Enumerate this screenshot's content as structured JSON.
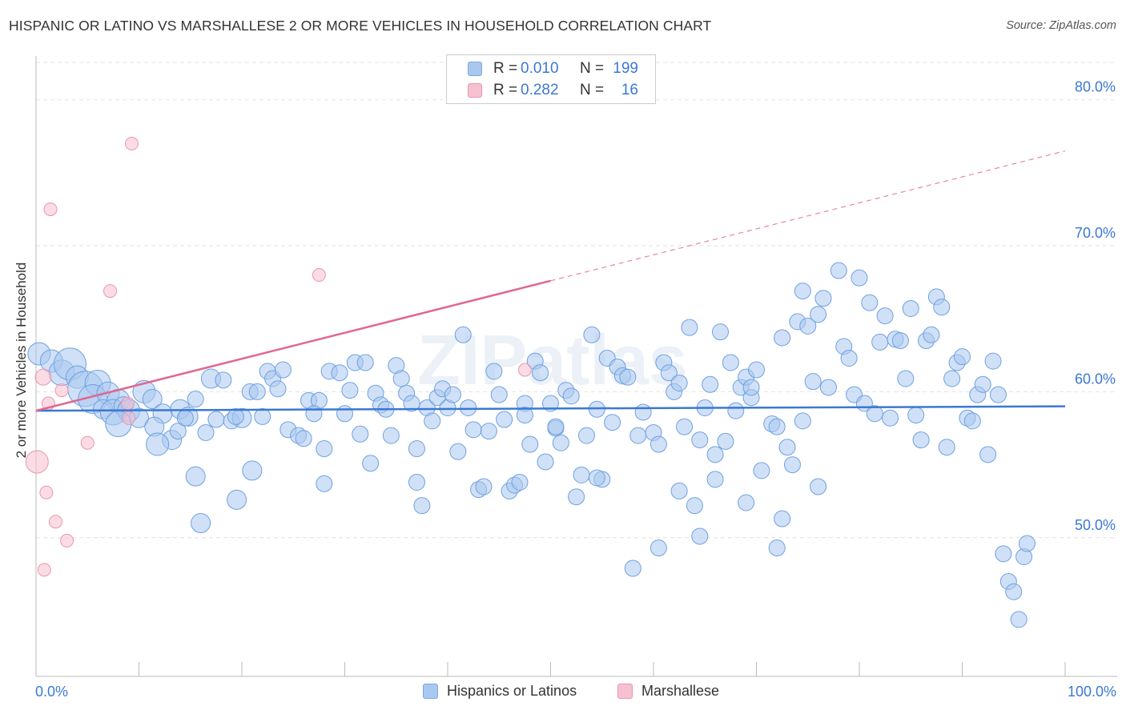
{
  "header": {
    "title": "HISPANIC OR LATINO VS MARSHALLESE 2 OR MORE VEHICLES IN HOUSEHOLD CORRELATION CHART",
    "source": "Source: ZipAtlas.com"
  },
  "legend_top": {
    "rows": [
      {
        "r_label": "R =",
        "r_value": "0.010",
        "n_label": "N =",
        "n_value": "199"
      },
      {
        "r_label": "R =",
        "r_value": "0.282",
        "n_label": "N =",
        "n_value": "16"
      }
    ]
  },
  "legend_bottom": {
    "items": [
      "Hispanics or Latinos",
      "Marshallese"
    ]
  },
  "colors": {
    "blue_fill": "#a9c8f0",
    "blue_stroke": "#6fa0e0",
    "blue_line": "#3a78d4",
    "pink_fill": "#f7c0d0",
    "pink_stroke": "#e896ae",
    "pink_line": "#e0678f",
    "tick_label": "#3b78d4"
  },
  "chart_data": {
    "type": "scatter",
    "title": "HISPANIC OR LATINO VS MARSHALLESE 2 OR MORE VEHICLES IN HOUSEHOLD CORRELATION CHART",
    "xlabel": "",
    "ylabel": "2 or more Vehicles in Household",
    "xlim": [
      0,
      100
    ],
    "ylim": [
      40.5,
      83
    ],
    "x_tick_labels": [
      "0.0%",
      "100.0%"
    ],
    "y_ticks": [
      50,
      60,
      70,
      80
    ],
    "y_tick_labels": [
      "50.0%",
      "60.0%",
      "70.0%",
      "80.0%"
    ],
    "grid": true,
    "legend_position": "top-center",
    "watermark": "ZIPatlas",
    "series": [
      {
        "name": "Hispanics or Latinos",
        "R": 0.01,
        "N": 199,
        "trend": {
          "x": [
            0,
            100
          ],
          "y": [
            58.7,
            59.0
          ]
        },
        "points": [
          [
            0.3,
            62.6,
            14
          ],
          [
            1.5,
            62.1,
            14
          ],
          [
            2.5,
            61.3,
            16
          ],
          [
            3.3,
            61.9,
            20
          ],
          [
            4.0,
            61.0,
            14
          ],
          [
            4.8,
            60.2,
            22
          ],
          [
            6.0,
            60.6,
            16
          ],
          [
            5.5,
            59.5,
            18
          ],
          [
            7.0,
            59.9,
            14
          ],
          [
            8.0,
            59.4,
            14
          ],
          [
            6.5,
            58.8,
            12
          ],
          [
            7.5,
            58.6,
            16
          ],
          [
            8.5,
            59.0,
            12
          ],
          [
            9.0,
            58.7,
            14
          ],
          [
            10.0,
            58.2,
            12
          ],
          [
            8.0,
            57.8,
            16
          ],
          [
            10.5,
            60.0,
            14
          ],
          [
            11.3,
            59.5,
            12
          ],
          [
            12.3,
            58.5,
            12
          ],
          [
            14.0,
            58.8,
            12
          ],
          [
            14.8,
            58.3,
            12
          ],
          [
            15.5,
            59.5,
            10
          ],
          [
            11.5,
            57.6,
            12
          ],
          [
            13.2,
            56.7,
            12
          ],
          [
            11.8,
            56.4,
            14
          ],
          [
            13.8,
            57.3,
            10
          ],
          [
            14.5,
            58.2,
            10
          ],
          [
            16.5,
            57.2,
            10
          ],
          [
            17.5,
            58.1,
            10
          ],
          [
            17.0,
            60.9,
            12
          ],
          [
            18.2,
            60.8,
            10
          ],
          [
            19.0,
            58.0,
            10
          ],
          [
            20.0,
            58.2,
            12
          ],
          [
            19.4,
            58.3,
            10
          ],
          [
            20.8,
            60.0,
            10
          ],
          [
            21.5,
            60.0,
            10
          ],
          [
            22.0,
            58.3,
            10
          ],
          [
            22.5,
            61.4,
            10
          ],
          [
            23.0,
            60.9,
            10
          ],
          [
            23.5,
            60.2,
            10
          ],
          [
            24.0,
            61.5,
            10
          ],
          [
            24.5,
            57.4,
            10
          ],
          [
            25.5,
            57.0,
            10
          ],
          [
            26.0,
            56.8,
            10
          ],
          [
            26.5,
            59.4,
            10
          ],
          [
            27.5,
            59.4,
            10
          ],
          [
            28.0,
            56.1,
            10
          ],
          [
            28.5,
            61.4,
            10
          ],
          [
            30.0,
            58.5,
            10
          ],
          [
            30.5,
            60.1,
            10
          ],
          [
            31.0,
            62.0,
            10
          ],
          [
            31.5,
            57.1,
            10
          ],
          [
            32.0,
            62.0,
            10
          ],
          [
            32.5,
            55.1,
            10
          ],
          [
            33.0,
            59.9,
            10
          ],
          [
            33.5,
            59.1,
            10
          ],
          [
            34.0,
            58.8,
            10
          ],
          [
            34.5,
            57.0,
            10
          ],
          [
            35.0,
            61.8,
            10
          ],
          [
            36.0,
            59.9,
            10
          ],
          [
            36.5,
            59.2,
            10
          ],
          [
            37.0,
            56.1,
            10
          ],
          [
            37.5,
            52.2,
            10
          ],
          [
            38.0,
            58.9,
            10
          ],
          [
            39.0,
            59.6,
            10
          ],
          [
            39.5,
            60.2,
            10
          ],
          [
            40.0,
            58.9,
            10
          ],
          [
            40.5,
            59.8,
            10
          ],
          [
            41.0,
            55.9,
            10
          ],
          [
            41.5,
            63.9,
            10
          ],
          [
            42.0,
            58.9,
            10
          ],
          [
            42.5,
            57.4,
            10
          ],
          [
            43.0,
            53.3,
            10
          ],
          [
            43.5,
            53.5,
            10
          ],
          [
            44.0,
            57.3,
            10
          ],
          [
            44.5,
            61.4,
            10
          ],
          [
            45.0,
            59.8,
            10
          ],
          [
            45.5,
            58.1,
            10
          ],
          [
            46.0,
            53.2,
            10
          ],
          [
            46.5,
            53.6,
            10
          ],
          [
            47.0,
            53.8,
            10
          ],
          [
            47.5,
            59.2,
            10
          ],
          [
            48.0,
            56.4,
            10
          ],
          [
            48.5,
            62.1,
            10
          ],
          [
            49.0,
            61.3,
            10
          ],
          [
            49.5,
            55.2,
            10
          ],
          [
            50.0,
            59.2,
            10
          ],
          [
            50.5,
            57.5,
            10
          ],
          [
            51.0,
            56.5,
            10
          ],
          [
            51.5,
            60.1,
            10
          ],
          [
            52.0,
            59.7,
            10
          ],
          [
            52.5,
            52.8,
            10
          ],
          [
            53.0,
            54.3,
            10
          ],
          [
            53.5,
            57.0,
            10
          ],
          [
            54.0,
            63.9,
            10
          ],
          [
            54.5,
            58.8,
            10
          ],
          [
            55.0,
            54.0,
            10
          ],
          [
            55.5,
            62.3,
            10
          ],
          [
            56.0,
            57.9,
            10
          ],
          [
            56.5,
            61.7,
            10
          ],
          [
            57.0,
            61.1,
            10
          ],
          [
            57.5,
            61.0,
            10
          ],
          [
            58.5,
            57.0,
            10
          ],
          [
            59.0,
            58.6,
            10
          ],
          [
            60.0,
            57.2,
            10
          ],
          [
            60.5,
            56.4,
            10
          ],
          [
            61.0,
            62.0,
            10
          ],
          [
            61.5,
            61.3,
            10
          ],
          [
            62.0,
            60.0,
            10
          ],
          [
            62.5,
            60.6,
            10
          ],
          [
            63.0,
            57.6,
            10
          ],
          [
            63.5,
            64.4,
            10
          ],
          [
            64.0,
            52.2,
            10
          ],
          [
            64.5,
            56.7,
            10
          ],
          [
            65.0,
            58.9,
            10
          ],
          [
            65.5,
            60.5,
            10
          ],
          [
            66.0,
            54.0,
            10
          ],
          [
            66.5,
            64.1,
            10
          ],
          [
            67.0,
            56.6,
            10
          ],
          [
            67.5,
            62.0,
            10
          ],
          [
            68.0,
            58.7,
            10
          ],
          [
            68.5,
            60.3,
            10
          ],
          [
            69.0,
            61.0,
            10
          ],
          [
            69.5,
            59.6,
            10
          ],
          [
            70.0,
            61.5,
            10
          ],
          [
            70.5,
            54.6,
            10
          ],
          [
            71.5,
            57.8,
            10
          ],
          [
            72.0,
            57.6,
            10
          ],
          [
            72.5,
            63.7,
            10
          ],
          [
            73.0,
            56.2,
            10
          ],
          [
            73.5,
            55.0,
            10
          ],
          [
            74.0,
            64.8,
            10
          ],
          [
            74.5,
            66.9,
            10
          ],
          [
            75.0,
            64.5,
            10
          ],
          [
            75.5,
            60.7,
            10
          ],
          [
            76.0,
            65.3,
            10
          ],
          [
            76.5,
            66.4,
            10
          ],
          [
            77.0,
            60.3,
            10
          ],
          [
            78.0,
            68.3,
            10
          ],
          [
            78.5,
            63.1,
            10
          ],
          [
            79.0,
            62.3,
            10
          ],
          [
            79.5,
            59.8,
            10
          ],
          [
            80.0,
            67.8,
            10
          ],
          [
            80.5,
            59.2,
            10
          ],
          [
            81.0,
            66.1,
            10
          ],
          [
            81.5,
            58.5,
            10
          ],
          [
            82.0,
            63.4,
            10
          ],
          [
            82.5,
            65.2,
            10
          ],
          [
            83.0,
            58.2,
            10
          ],
          [
            83.5,
            63.6,
            10
          ],
          [
            84.0,
            63.5,
            10
          ],
          [
            84.5,
            60.9,
            10
          ],
          [
            85.0,
            65.7,
            10
          ],
          [
            85.5,
            58.4,
            10
          ],
          [
            86.0,
            56.7,
            10
          ],
          [
            86.5,
            63.5,
            10
          ],
          [
            87.0,
            63.9,
            10
          ],
          [
            87.5,
            66.5,
            10
          ],
          [
            88.0,
            65.8,
            10
          ],
          [
            88.5,
            56.2,
            10
          ],
          [
            89.0,
            60.9,
            10
          ],
          [
            89.5,
            62.0,
            10
          ],
          [
            90.0,
            62.4,
            10
          ],
          [
            90.5,
            58.2,
            10
          ],
          [
            91.0,
            58.0,
            10
          ],
          [
            91.5,
            59.8,
            10
          ],
          [
            92.0,
            60.5,
            10
          ],
          [
            92.5,
            55.7,
            10
          ],
          [
            93.0,
            62.1,
            10
          ],
          [
            93.5,
            59.8,
            10
          ],
          [
            94.0,
            48.9,
            10
          ],
          [
            94.5,
            47.0,
            10
          ],
          [
            95.0,
            46.3,
            10
          ],
          [
            95.5,
            44.4,
            10
          ],
          [
            96.0,
            48.7,
            10
          ],
          [
            96.3,
            49.6,
            10
          ],
          [
            76.0,
            53.5,
            10
          ],
          [
            74.5,
            58.0,
            10
          ],
          [
            72.5,
            51.3,
            10
          ],
          [
            69.5,
            60.3,
            10
          ],
          [
            58.0,
            47.9,
            10
          ],
          [
            60.5,
            49.3,
            10
          ],
          [
            72.0,
            49.3,
            10
          ],
          [
            69.0,
            52.4,
            10
          ],
          [
            64.5,
            50.1,
            10
          ],
          [
            66.0,
            55.7,
            10
          ],
          [
            62.5,
            53.2,
            10
          ],
          [
            54.5,
            54.1,
            10
          ],
          [
            50.5,
            57.6,
            10
          ],
          [
            47.5,
            58.4,
            10
          ],
          [
            38.5,
            58.0,
            10
          ],
          [
            35.5,
            60.9,
            10
          ],
          [
            29.5,
            61.3,
            10
          ],
          [
            27.0,
            58.5,
            10
          ],
          [
            21.0,
            54.6,
            12
          ],
          [
            15.5,
            54.2,
            12
          ],
          [
            16.0,
            51.0,
            12
          ],
          [
            19.5,
            52.6,
            12
          ],
          [
            28.0,
            53.7,
            10
          ],
          [
            37.0,
            53.8,
            10
          ]
        ]
      },
      {
        "name": "Marshallese",
        "R": 0.282,
        "N": 16,
        "trend": {
          "x": [
            0,
            50
          ],
          "y": [
            58.7,
            67.6
          ]
        },
        "trend_dashed": {
          "x": [
            50,
            100
          ],
          "y": [
            67.6,
            76.5
          ]
        },
        "points": [
          [
            0.1,
            55.2,
            14
          ],
          [
            0.7,
            61.0,
            10
          ],
          [
            1.2,
            59.2,
            8
          ],
          [
            1.4,
            72.5,
            8
          ],
          [
            1.0,
            53.1,
            8
          ],
          [
            1.9,
            51.1,
            8
          ],
          [
            2.5,
            60.1,
            8
          ],
          [
            3.0,
            49.8,
            8
          ],
          [
            0.8,
            47.8,
            8
          ],
          [
            5.0,
            56.5,
            8
          ],
          [
            7.2,
            66.9,
            8
          ],
          [
            9.3,
            77.0,
            8
          ],
          [
            8.9,
            59.2,
            8
          ],
          [
            9.0,
            58.2,
            8
          ],
          [
            27.5,
            68.0,
            8
          ],
          [
            47.5,
            61.5,
            8
          ]
        ]
      }
    ]
  }
}
